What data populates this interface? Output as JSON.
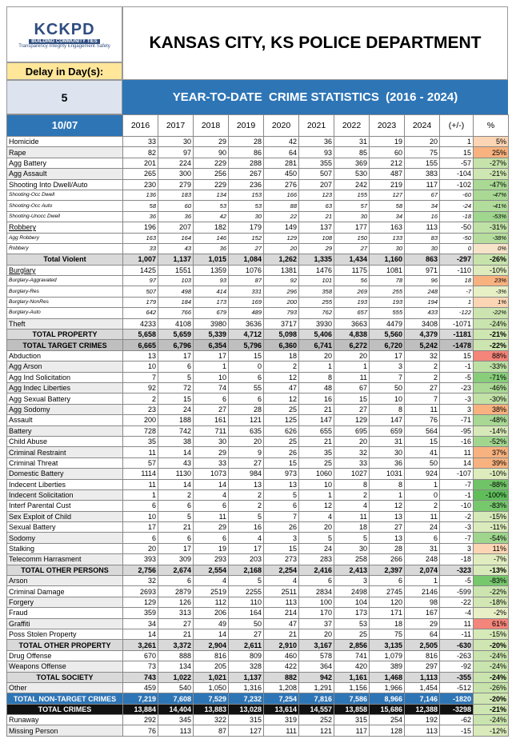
{
  "header": {
    "logo": "KCKPD",
    "logo_tagline": "BUILDING COMMUNITY TIES",
    "logo_motto": "Transparency·Integrity Engagement·Safety",
    "title": "KANSAS CITY, KS POLICE DEPARTMENT",
    "delay_label": "Delay in Day(s):",
    "delay_value": "5",
    "date": "10/07",
    "banner": "YEAR-TO-DATE  CRIME STATISTICS  (2016 - 2024)"
  },
  "table": {
    "columns": [
      "2016",
      "2017",
      "2018",
      "2019",
      "2020",
      "2021",
      "2022",
      "2023",
      "2024",
      "(+/-)",
      "%"
    ],
    "rows": [
      {
        "name": "Homicide",
        "values": [
          "33",
          "30",
          "29",
          "28",
          "42",
          "36",
          "31",
          "19",
          "20",
          "1",
          "5%"
        ]
      },
      {
        "name": "Rape",
        "values": [
          "82",
          "97",
          "90",
          "86",
          "64",
          "93",
          "85",
          "60",
          "75",
          "15",
          "25%"
        ]
      },
      {
        "name": "Agg Battery",
        "values": [
          "201",
          "224",
          "229",
          "288",
          "281",
          "355",
          "369",
          "212",
          "155",
          "-57",
          "-27%"
        ]
      },
      {
        "name": "Agg Assault",
        "values": [
          "265",
          "300",
          "256",
          "267",
          "450",
          "507",
          "530",
          "487",
          "383",
          "-104",
          "-21%"
        ]
      },
      {
        "name": "Shooting Into Dwell/Auto",
        "values": [
          "230",
          "279",
          "229",
          "236",
          "276",
          "207",
          "242",
          "219",
          "117",
          "-102",
          "-47%"
        ]
      },
      {
        "name": "Shooting-Occ Dwell",
        "values": [
          "136",
          "183",
          "134",
          "153",
          "166",
          "123",
          "155",
          "127",
          "67",
          "-60",
          "-47%"
        ]
      },
      {
        "name": "Shooting-Occ Auto",
        "values": [
          "58",
          "60",
          "53",
          "53",
          "88",
          "63",
          "57",
          "58",
          "34",
          "-24",
          "-41%"
        ]
      },
      {
        "name": "Shooting-Unocc Dwell",
        "values": [
          "36",
          "36",
          "42",
          "30",
          "22",
          "21",
          "30",
          "34",
          "16",
          "-18",
          "-53%"
        ]
      },
      {
        "name": "Robbery",
        "values": [
          "196",
          "207",
          "182",
          "179",
          "149",
          "137",
          "177",
          "163",
          "113",
          "-50",
          "-31%"
        ]
      },
      {
        "name": "Agg Robbery",
        "values": [
          "163",
          "164",
          "146",
          "152",
          "129",
          "108",
          "150",
          "133",
          "83",
          "-50",
          "-38%"
        ]
      },
      {
        "name": "Robbery",
        "values": [
          "33",
          "43",
          "36",
          "27",
          "20",
          "29",
          "27",
          "30",
          "30",
          "0",
          "0%"
        ]
      },
      {
        "name": "Total Violent",
        "values": [
          "1,007",
          "1,137",
          "1,015",
          "1,084",
          "1,262",
          "1,335",
          "1,434",
          "1,160",
          "863",
          "-297",
          "-26%"
        ]
      },
      {
        "name": "Burglary",
        "values": [
          "1425",
          "1551",
          "1359",
          "1076",
          "1381",
          "1476",
          "1175",
          "1081",
          "971",
          "-110",
          "-10%"
        ]
      },
      {
        "name": "Burglary-Aggravated",
        "values": [
          "97",
          "103",
          "93",
          "87",
          "92",
          "101",
          "56",
          "78",
          "96",
          "18",
          "23%"
        ]
      },
      {
        "name": "Burglary-Res",
        "values": [
          "507",
          "498",
          "414",
          "331",
          "296",
          "358",
          "269",
          "255",
          "248",
          "-7",
          "-3%"
        ]
      },
      {
        "name": "Burglary-NonRes",
        "values": [
          "179",
          "184",
          "173",
          "169",
          "200",
          "255",
          "193",
          "193",
          "194",
          "1",
          "1%"
        ]
      },
      {
        "name": "Burglary-Auto",
        "values": [
          "642",
          "766",
          "679",
          "489",
          "793",
          "762",
          "657",
          "555",
          "433",
          "-122",
          "-22%"
        ]
      },
      {
        "name": "Theft",
        "values": [
          "4233",
          "4108",
          "3980",
          "3636",
          "3717",
          "3930",
          "3663",
          "4479",
          "3408",
          "-1071",
          "-24%"
        ]
      },
      {
        "name": "TOTAL PROPERTY",
        "values": [
          "5,658",
          "5,659",
          "5,339",
          "4,712",
          "5,098",
          "5,406",
          "4,838",
          "5,560",
          "4,379",
          "-1181",
          "-21%"
        ]
      },
      {
        "name": "TOTAL TARGET CRIMES",
        "values": [
          "6,665",
          "6,796",
          "6,354",
          "5,796",
          "6,360",
          "6,741",
          "6,272",
          "6,720",
          "5,242",
          "-1478",
          "-22%"
        ]
      },
      {
        "name": "Abduction",
        "values": [
          "13",
          "17",
          "17",
          "15",
          "18",
          "20",
          "20",
          "17",
          "32",
          "15",
          "88%"
        ]
      },
      {
        "name": "Agg Arson",
        "values": [
          "10",
          "6",
          "1",
          "0",
          "2",
          "1",
          "1",
          "3",
          "2",
          "-1",
          "-33%"
        ]
      },
      {
        "name": "Agg Ind Solicitation",
        "values": [
          "7",
          "5",
          "10",
          "6",
          "12",
          "8",
          "11",
          "7",
          "2",
          "-5",
          "-71%"
        ]
      },
      {
        "name": "Agg Indec Liberties",
        "values": [
          "92",
          "72",
          "74",
          "55",
          "47",
          "48",
          "67",
          "50",
          "27",
          "-23",
          "-46%"
        ]
      },
      {
        "name": "Agg Sexual Battery",
        "values": [
          "2",
          "15",
          "6",
          "6",
          "12",
          "16",
          "15",
          "10",
          "7",
          "-3",
          "-30%"
        ]
      },
      {
        "name": "Agg Sodomy",
        "values": [
          "23",
          "24",
          "27",
          "28",
          "25",
          "21",
          "27",
          "8",
          "11",
          "3",
          "38%"
        ]
      },
      {
        "name": "Assault",
        "values": [
          "200",
          "188",
          "161",
          "121",
          "125",
          "147",
          "129",
          "147",
          "76",
          "-71",
          "-48%"
        ]
      },
      {
        "name": "Battery",
        "values": [
          "728",
          "742",
          "711",
          "635",
          "626",
          "655",
          "695",
          "659",
          "564",
          "-95",
          "-14%"
        ]
      },
      {
        "name": "Child Abuse",
        "values": [
          "35",
          "38",
          "30",
          "20",
          "25",
          "21",
          "20",
          "31",
          "15",
          "-16",
          "-52%"
        ]
      },
      {
        "name": "Criminal Restraint",
        "values": [
          "11",
          "14",
          "29",
          "9",
          "26",
          "35",
          "32",
          "30",
          "41",
          "11",
          "37%"
        ]
      },
      {
        "name": "Criminal Threat",
        "values": [
          "57",
          "43",
          "33",
          "27",
          "15",
          "25",
          "33",
          "36",
          "50",
          "14",
          "39%"
        ]
      },
      {
        "name": "Domestic Battery",
        "values": [
          "1114",
          "1130",
          "1073",
          "984",
          "973",
          "1060",
          "1027",
          "1031",
          "924",
          "-107",
          "-10%"
        ]
      },
      {
        "name": "Indecent Liberties",
        "values": [
          "11",
          "14",
          "14",
          "13",
          "13",
          "10",
          "8",
          "8",
          "1",
          "-7",
          "-88%"
        ]
      },
      {
        "name": "Indecent Solicitation",
        "values": [
          "1",
          "2",
          "4",
          "2",
          "5",
          "1",
          "2",
          "1",
          "0",
          "-1",
          "-100%"
        ]
      },
      {
        "name": "Interf Parental Cust",
        "values": [
          "6",
          "6",
          "6",
          "2",
          "6",
          "12",
          "4",
          "12",
          "2",
          "-10",
          "-83%"
        ]
      },
      {
        "name": "Sex Exploit of Child",
        "values": [
          "10",
          "5",
          "11",
          "5",
          "7",
          "4",
          "11",
          "13",
          "11",
          "-2",
          "-15%"
        ]
      },
      {
        "name": "Sexual Battery",
        "values": [
          "17",
          "21",
          "29",
          "16",
          "26",
          "20",
          "18",
          "27",
          "24",
          "-3",
          "-11%"
        ]
      },
      {
        "name": "Sodomy",
        "values": [
          "6",
          "6",
          "6",
          "4",
          "3",
          "5",
          "5",
          "13",
          "6",
          "-7",
          "-54%"
        ]
      },
      {
        "name": "Stalking",
        "values": [
          "20",
          "17",
          "19",
          "17",
          "15",
          "24",
          "30",
          "28",
          "31",
          "3",
          "11%"
        ]
      },
      {
        "name": "Telecomm Harrasment",
        "values": [
          "393",
          "309",
          "293",
          "203",
          "273",
          "283",
          "258",
          "266",
          "248",
          "-18",
          "-7%"
        ]
      },
      {
        "name": "TOTAL OTHER PERSONS",
        "values": [
          "2,756",
          "2,674",
          "2,554",
          "2,168",
          "2,254",
          "2,416",
          "2,413",
          "2,397",
          "2,074",
          "-323",
          "-13%"
        ]
      },
      {
        "name": "Arson",
        "values": [
          "32",
          "6",
          "4",
          "5",
          "4",
          "6",
          "3",
          "6",
          "1",
          "-5",
          "-83%"
        ]
      },
      {
        "name": "Criminal Damage",
        "values": [
          "2693",
          "2879",
          "2519",
          "2255",
          "2511",
          "2834",
          "2498",
          "2745",
          "2146",
          "-599",
          "-22%"
        ]
      },
      {
        "name": "Forgery",
        "values": [
          "129",
          "126",
          "112",
          "110",
          "113",
          "100",
          "104",
          "120",
          "98",
          "-22",
          "-18%"
        ]
      },
      {
        "name": "Fraud",
        "values": [
          "359",
          "313",
          "206",
          "164",
          "214",
          "170",
          "173",
          "171",
          "167",
          "-4",
          "-2%"
        ]
      },
      {
        "name": "Graffiti",
        "values": [
          "34",
          "27",
          "49",
          "50",
          "47",
          "37",
          "53",
          "18",
          "29",
          "11",
          "61%"
        ]
      },
      {
        "name": "Poss Stolen Property",
        "values": [
          "14",
          "21",
          "14",
          "27",
          "21",
          "20",
          "25",
          "75",
          "64",
          "-11",
          "-15%"
        ]
      },
      {
        "name": "TOTAL OTHER PROPERTY",
        "values": [
          "3,261",
          "3,372",
          "2,904",
          "2,611",
          "2,910",
          "3,167",
          "2,856",
          "3,135",
          "2,505",
          "-630",
          "-20%"
        ]
      },
      {
        "name": "Drug Offense",
        "values": [
          "670",
          "888",
          "816",
          "809",
          "460",
          "578",
          "741",
          "1,079",
          "816",
          "-263",
          "-24%"
        ]
      },
      {
        "name": "Weapons Offense",
        "values": [
          "73",
          "134",
          "205",
          "328",
          "422",
          "364",
          "420",
          "389",
          "297",
          "-92",
          "-24%"
        ]
      },
      {
        "name": "TOTAL SOCIETY",
        "values": [
          "743",
          "1,022",
          "1,021",
          "1,137",
          "882",
          "942",
          "1,161",
          "1,468",
          "1,113",
          "-355",
          "-24%"
        ]
      },
      {
        "name": "Other",
        "values": [
          "459",
          "540",
          "1,050",
          "1,316",
          "1,208",
          "1,291",
          "1,156",
          "1,966",
          "1,454",
          "-512",
          "-26%"
        ]
      },
      {
        "name": "TOTAL NON-TARGET CRIMES",
        "values": [
          "7,219",
          "7,608",
          "7,529",
          "7,232",
          "7,254",
          "7,816",
          "7,586",
          "8,966",
          "7,146",
          "-1820",
          "-20%"
        ]
      },
      {
        "name": "TOTAL CRIMES",
        "values": [
          "13,884",
          "14,404",
          "13,883",
          "13,028",
          "13,614",
          "14,557",
          "13,858",
          "15,686",
          "12,388",
          "-3298",
          "-21%"
        ]
      },
      {
        "name": "Runaway",
        "values": [
          "292",
          "345",
          "322",
          "315",
          "319",
          "252",
          "315",
          "254",
          "192",
          "-62",
          "-24%"
        ]
      },
      {
        "name": "Missing Person",
        "values": [
          "76",
          "113",
          "87",
          "127",
          "111",
          "121",
          "117",
          "128",
          "113",
          "-15",
          "-12%"
        ]
      }
    ]
  }
}
